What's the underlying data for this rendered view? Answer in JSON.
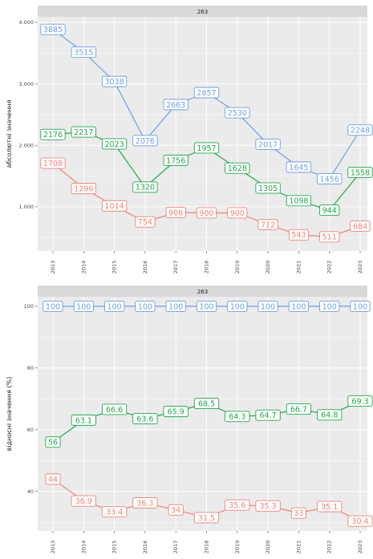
{
  "colors": {
    "blue": "#6f9ee6",
    "green": "#21a84a",
    "red": "#ef8378",
    "panel_bg": "#ebebeb",
    "strip_bg": "#d9d9d9",
    "grid": "#ffffff"
  },
  "chart_data": [
    {
      "type": "line",
      "strip_title": "263",
      "ylabel": "абсолютні значення",
      "x": [
        "2013",
        "2014",
        "2015",
        "2016",
        "2017",
        "2018",
        "2019",
        "2020",
        "2021",
        "2022",
        "2023"
      ],
      "yticks": [
        1000,
        2000,
        3000,
        4000
      ],
      "ytick_labels": [
        "1.000",
        "2.000",
        "3.000",
        "4.000"
      ],
      "ylim": [
        280,
        4090
      ],
      "grid": true,
      "series": [
        {
          "color_key": "blue",
          "values": [
            3885,
            3515,
            3038,
            2076,
            2663,
            2857,
            2530,
            2017,
            1645,
            1456,
            2248
          ]
        },
        {
          "color_key": "green",
          "values": [
            2176,
            2217,
            2023,
            1320,
            1756,
            1957,
            1628,
            1305,
            1098,
            944,
            1558
          ]
        },
        {
          "color_key": "red",
          "values": [
            1708,
            1296,
            1014,
            754,
            906,
            900,
            900,
            712,
            543,
            511,
            684
          ]
        }
      ]
    },
    {
      "type": "line",
      "strip_title": "263",
      "ylabel": "відносні значення (%)",
      "x": [
        "2013",
        "2014",
        "2015",
        "2016",
        "2017",
        "2018",
        "2019",
        "2020",
        "2021",
        "2022",
        "2023"
      ],
      "yticks": [
        40,
        60,
        80,
        100
      ],
      "ytick_labels": [
        "40",
        "60",
        "80",
        "100"
      ],
      "ylim": [
        27.2,
        103.1
      ],
      "grid": true,
      "series": [
        {
          "color_key": "blue",
          "values": [
            100,
            100,
            100,
            100,
            100,
            100,
            100,
            100,
            100,
            100,
            100
          ]
        },
        {
          "color_key": "green",
          "values": [
            56,
            63.1,
            66.6,
            63.6,
            65.9,
            68.5,
            64.3,
            64.7,
            66.7,
            64.8,
            69.3
          ]
        },
        {
          "color_key": "red",
          "values": [
            44,
            36.9,
            33.4,
            36.3,
            34,
            31.5,
            35.6,
            35.3,
            33,
            35.1,
            30.4
          ]
        }
      ]
    }
  ]
}
